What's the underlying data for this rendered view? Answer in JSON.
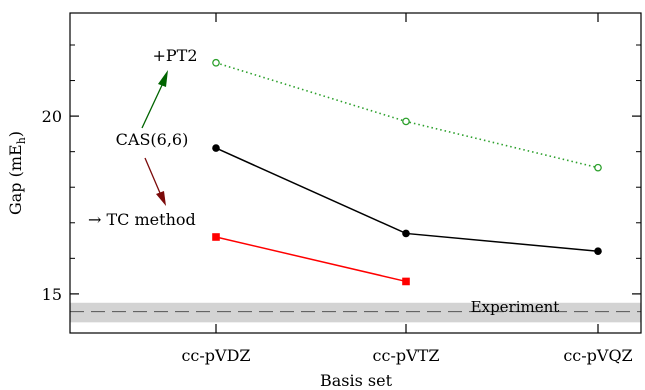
{
  "chart_data": {
    "type": "line",
    "xlabel": "Basis set",
    "ylabel_main": "Gap (mE",
    "ylabel_sub": "h",
    "ylabel_close": ")",
    "categories": [
      "cc-pVDZ",
      "cc-pVTZ",
      "cc-pVQZ"
    ],
    "yticks": [
      15,
      20
    ],
    "ylim": [
      13.9,
      22.9
    ],
    "grid": false,
    "series": [
      {
        "key": "pt2",
        "values": [
          21.5,
          19.85,
          18.55
        ],
        "color": "#2ca02c",
        "style": "dotted",
        "marker": "open-circle"
      },
      {
        "key": "cas",
        "values": [
          19.1,
          16.7,
          16.2
        ],
        "color": "#000000",
        "style": "solid",
        "marker": "filled-circle"
      },
      {
        "key": "tc",
        "values": [
          16.6,
          15.35,
          null
        ],
        "color": "#ff0000",
        "style": "solid",
        "marker": "filled-square"
      }
    ],
    "experiment": {
      "label": "Experiment",
      "value": 14.5,
      "band": [
        14.2,
        14.75
      ],
      "band_color": "#d3d3d3"
    },
    "annotations": {
      "pt2_label": "+PT2",
      "cas_label": "CAS(6,6)",
      "tc_label": "→ TC method",
      "arrow_up_color": "#006400",
      "arrow_down_color": "#7b0a0a"
    }
  }
}
